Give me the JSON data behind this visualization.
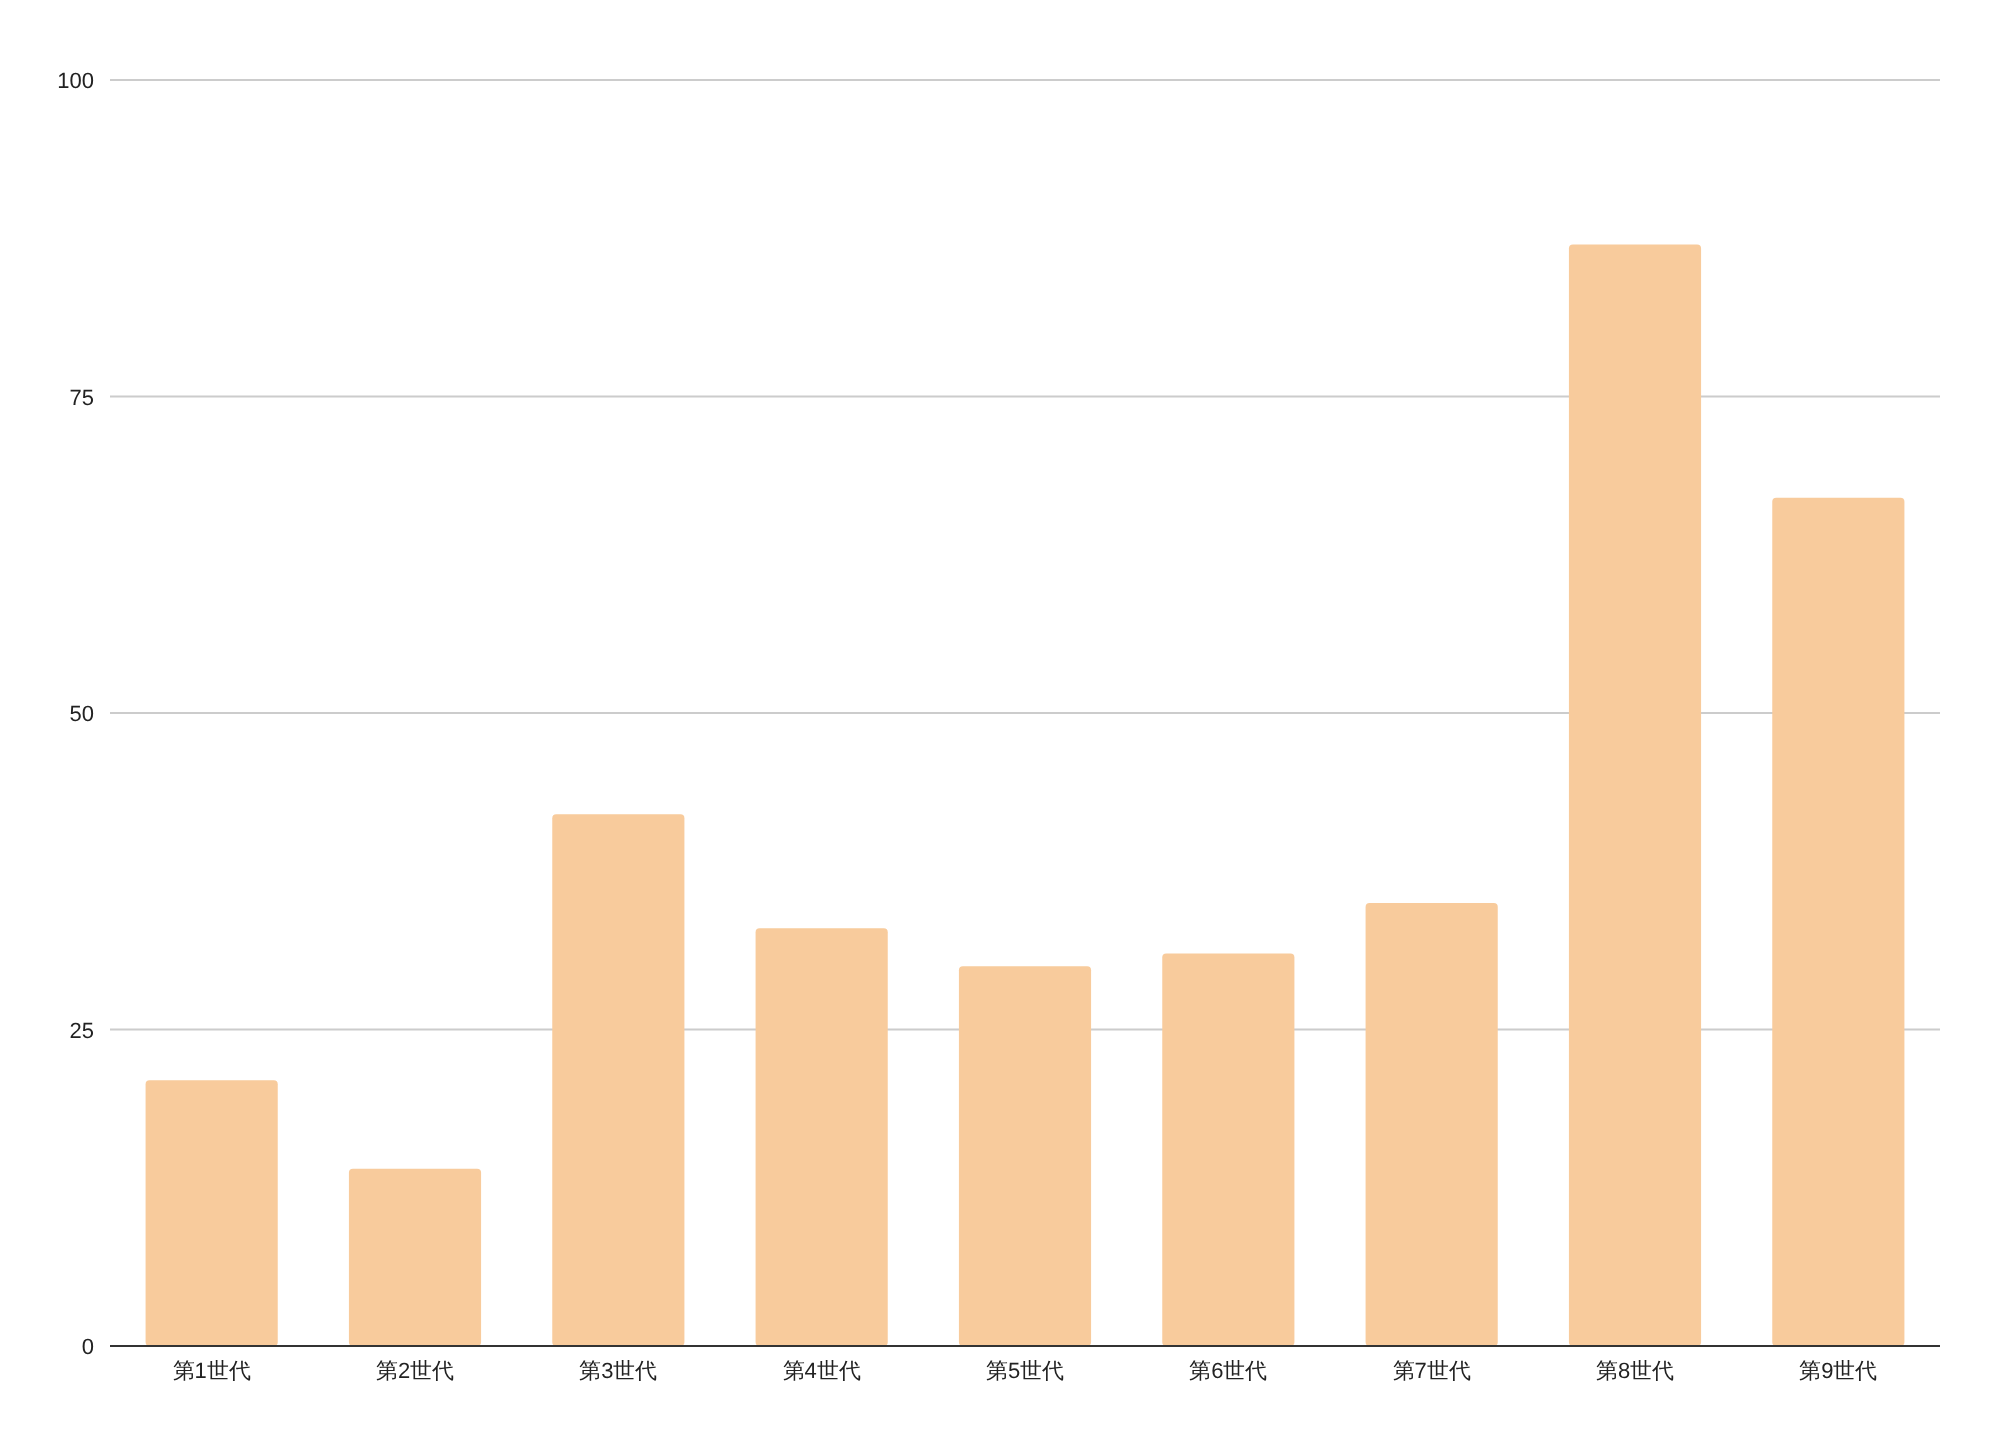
{
  "chart_data": {
    "type": "bar",
    "categories": [
      "第1世代",
      "第2世代",
      "第3世代",
      "第4世代",
      "第5世代",
      "第6世代",
      "第7世代",
      "第8世代",
      "第9世代"
    ],
    "values": [
      21,
      14,
      42,
      33,
      30,
      31,
      35,
      87,
      67
    ],
    "color": "#f8cb9c",
    "ylim": [
      0,
      100
    ],
    "yticks": [
      0,
      25,
      50,
      75,
      100
    ],
    "grid": "y"
  }
}
